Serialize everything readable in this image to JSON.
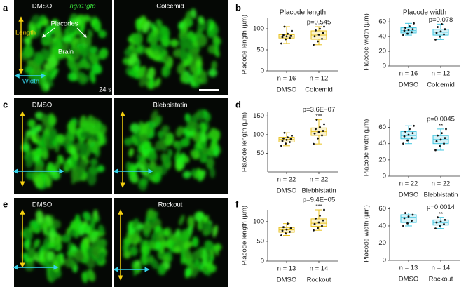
{
  "panel_labels": [
    "a",
    "b",
    "c",
    "d",
    "e",
    "f"
  ],
  "images": [
    {
      "label": "DMSO",
      "marker": "ngn1:gfp",
      "length": "Length",
      "placodes": "Placodes",
      "brain": "Brain",
      "width": "Width",
      "time": "24 s"
    },
    {
      "label": "Colcemid"
    },
    {
      "label": "DMSO"
    },
    {
      "label": "Blebbistatin"
    },
    {
      "label": "DMSO"
    },
    {
      "label": "Rockout"
    }
  ],
  "chart_data": [
    {
      "type": "box",
      "title": "Placode length",
      "ylabel": "Placode length (µm)",
      "categories": [
        "DMSO",
        "Colcemid"
      ],
      "n_labels": [
        "n = 16",
        "n = 12"
      ],
      "color": "#e8c21e",
      "ylim": [
        0,
        125
      ],
      "yticks": [
        0,
        50,
        100
      ],
      "annotation": "p=0.545",
      "boxes": [
        {
          "min": 65,
          "q1": 78,
          "median": 82,
          "q3": 86,
          "max": 105,
          "points": [
            65,
            75,
            78,
            80,
            82,
            83,
            85,
            88,
            95,
            105
          ]
        },
        {
          "min": 62,
          "q1": 75,
          "median": 85,
          "q3": 95,
          "max": 105,
          "points": [
            62,
            70,
            76,
            82,
            86,
            90,
            96,
            100,
            105
          ]
        }
      ]
    },
    {
      "type": "box",
      "title": "Placode width",
      "ylabel": "Placode width (µm)",
      "categories": [
        "DMSO",
        "Colcemid"
      ],
      "n_labels": [
        "n = 16",
        "n = 12"
      ],
      "color": "#3ec6e0",
      "ylim": [
        0,
        65
      ],
      "yticks": [
        0,
        20,
        40,
        60
      ],
      "annotation": "p=0.078",
      "boxes": [
        {
          "min": 42,
          "q1": 45,
          "median": 48,
          "q3": 52,
          "max": 58,
          "points": [
            42,
            44,
            46,
            48,
            49,
            50,
            52,
            54,
            58
          ]
        },
        {
          "min": 36,
          "q1": 42,
          "median": 46,
          "q3": 50,
          "max": 57,
          "points": [
            36,
            40,
            43,
            45,
            47,
            50,
            53,
            57
          ]
        }
      ]
    },
    {
      "type": "box",
      "ylabel": "Placode length (µm)",
      "categories": [
        "DMSO",
        "Blebbistatin"
      ],
      "n_labels": [
        "n = 22",
        "n = 22"
      ],
      "color": "#e8c21e",
      "ylim": [
        0,
        160
      ],
      "yticks": [
        50,
        100,
        150
      ],
      "annotation": "p=3.6E−07",
      "significance": "***",
      "boxes": [
        {
          "min": 70,
          "q1": 80,
          "median": 87,
          "q3": 93,
          "max": 105,
          "points": [
            70,
            76,
            80,
            83,
            86,
            88,
            90,
            93,
            97,
            105
          ]
        },
        {
          "min": 75,
          "q1": 98,
          "median": 108,
          "q3": 118,
          "max": 140,
          "points": [
            75,
            90,
            98,
            103,
            107,
            110,
            115,
            120,
            128,
            140
          ]
        }
      ]
    },
    {
      "type": "box",
      "ylabel": "Placode width (µm)",
      "categories": [
        "DMSO",
        "Blebbistatin"
      ],
      "n_labels": [
        "n = 22",
        "n = 22"
      ],
      "color": "#3ec6e0",
      "ylim": [
        0,
        70
      ],
      "yticks": [
        0,
        20,
        40,
        60
      ],
      "annotation": "p=0.0045",
      "significance": "**",
      "boxes": [
        {
          "min": 40,
          "q1": 46,
          "median": 50,
          "q3": 55,
          "max": 62,
          "points": [
            40,
            44,
            47,
            49,
            51,
            53,
            55,
            58,
            62
          ]
        },
        {
          "min": 32,
          "q1": 40,
          "median": 45,
          "q3": 50,
          "max": 58,
          "points": [
            32,
            37,
            40,
            43,
            45,
            47,
            50,
            53,
            58
          ]
        }
      ]
    },
    {
      "type": "box",
      "ylabel": "Placode length (µm)",
      "categories": [
        "DMSO",
        "Rockout"
      ],
      "n_labels": [
        "n = 13",
        "n = 14"
      ],
      "color": "#e8c21e",
      "ylim": [
        0,
        130
      ],
      "yticks": [
        0,
        50,
        100
      ],
      "annotation": "p=9.4E−05",
      "significance": "***",
      "boxes": [
        {
          "min": 65,
          "q1": 73,
          "median": 79,
          "q3": 85,
          "max": 95,
          "points": [
            65,
            70,
            74,
            77,
            80,
            83,
            86,
            95
          ]
        },
        {
          "min": 78,
          "q1": 88,
          "median": 96,
          "q3": 107,
          "max": 130,
          "points": [
            78,
            84,
            89,
            94,
            98,
            103,
            108,
            115,
            130
          ]
        }
      ]
    },
    {
      "type": "box",
      "ylabel": "Placode width (µm)",
      "categories": [
        "DMSO",
        "Rockout"
      ],
      "n_labels": [
        "n = 13",
        "n = 14"
      ],
      "color": "#3ec6e0",
      "ylim": [
        0,
        62
      ],
      "yticks": [
        0,
        20,
        40,
        60
      ],
      "annotation": "p=0.0014",
      "significance": "**",
      "boxes": [
        {
          "min": 40,
          "q1": 44,
          "median": 50,
          "q3": 53,
          "max": 55,
          "points": [
            40,
            43,
            46,
            49,
            51,
            53,
            55
          ]
        },
        {
          "min": 37,
          "q1": 41,
          "median": 44,
          "q3": 47,
          "max": 50,
          "points": [
            37,
            40,
            42,
            44,
            45,
            47,
            50
          ]
        }
      ]
    }
  ]
}
